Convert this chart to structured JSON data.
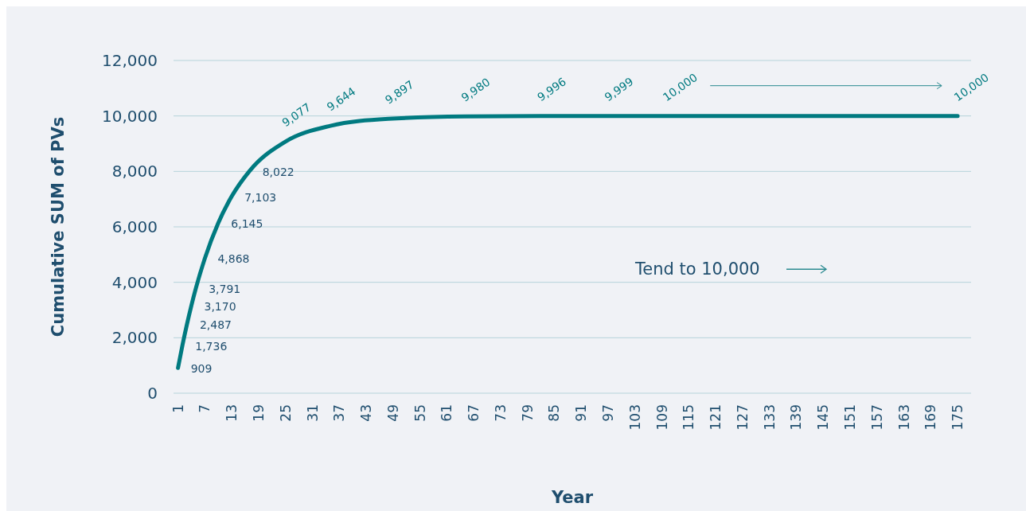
{
  "chart_data": {
    "type": "line",
    "xlabel": "Year",
    "ylabel": "Cumulative SUM of PVs",
    "x": [
      1,
      2,
      3,
      4,
      5,
      7,
      10,
      13,
      17,
      25,
      35,
      48,
      65,
      82,
      97,
      110,
      175
    ],
    "series": [
      {
        "color": "#007a80",
        "values": [
          909,
          1736,
          2487,
          3170,
          3791,
          4868,
          6145,
          7103,
          8022,
          9077,
          9644,
          9897,
          9980,
          9996,
          9999,
          10000,
          10000
        ],
        "value_labels": [
          "909",
          "1,736",
          "2,487",
          "3,170",
          "3,791",
          "4,868",
          "6,145",
          "7,103",
          "8,022",
          "9,077",
          "9,644",
          "9,897",
          "9,980",
          "9,996",
          "9,999",
          "10,000",
          "10,000"
        ]
      }
    ],
    "xlim": [
      0,
      178
    ],
    "xticks": [
      1,
      7,
      13,
      19,
      25,
      31,
      37,
      43,
      49,
      55,
      61,
      67,
      73,
      79,
      85,
      91,
      97,
      103,
      109,
      115,
      121,
      127,
      133,
      139,
      145,
      151,
      157,
      163,
      169,
      175
    ],
    "ylim": [
      0,
      12000
    ],
    "yticks": [
      {
        "value": 0,
        "label": "0"
      },
      {
        "value": 2000,
        "label": "2,000"
      },
      {
        "value": 4000,
        "label": "4,000"
      },
      {
        "value": 6000,
        "label": "6,000"
      },
      {
        "value": 8000,
        "label": "8,000"
      },
      {
        "value": 10000,
        "label": "10,000"
      },
      {
        "value": 12000,
        "label": "12,000"
      }
    ],
    "grid": "y",
    "marker": "none",
    "line_style": "solid",
    "annotations": [
      "Tend to 10,000"
    ]
  }
}
